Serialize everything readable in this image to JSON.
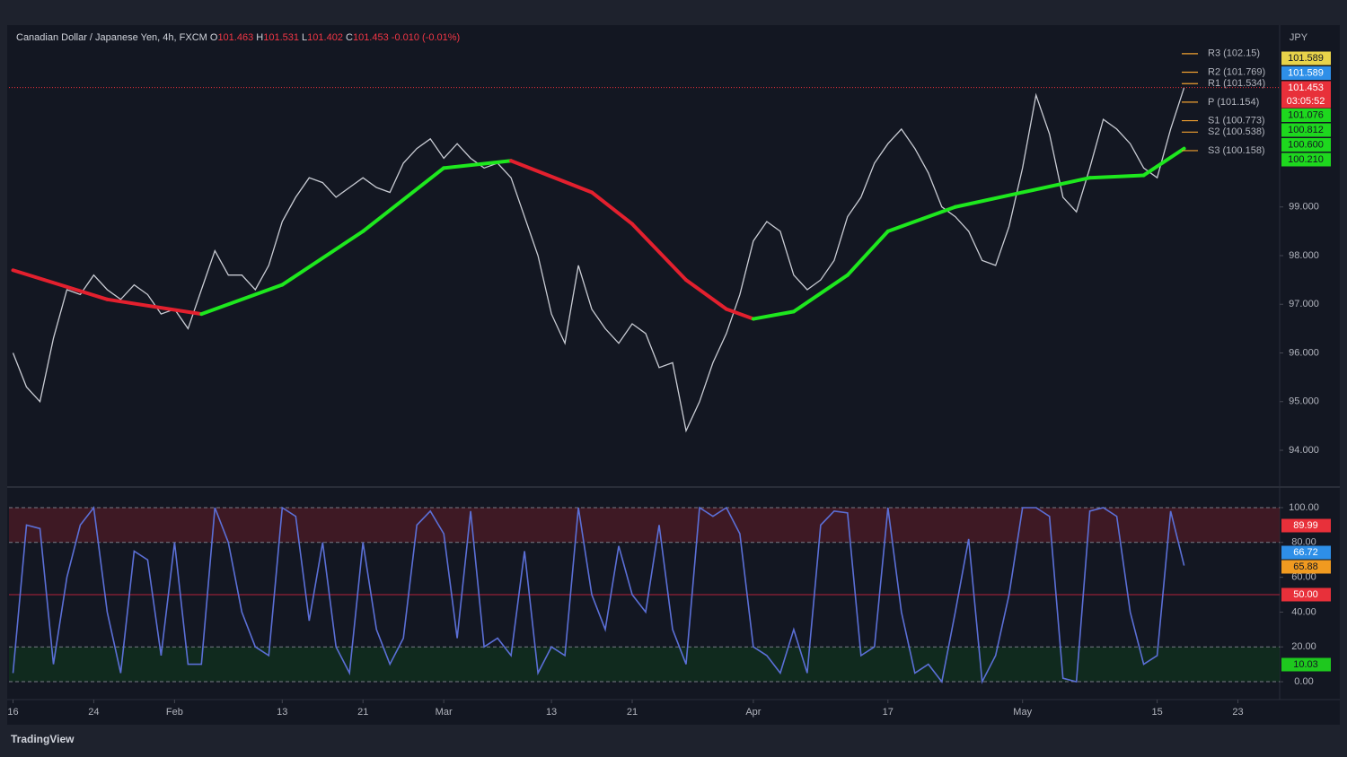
{
  "header": {
    "symbol": "Canadian Dollar / Japanese Yen, 4h, FXCM",
    "ohlc": [
      {
        "key": "O",
        "value": "101.463"
      },
      {
        "key": "H",
        "value": "101.531"
      },
      {
        "key": "L",
        "value": "101.402"
      },
      {
        "key": "C",
        "value": "101.453"
      }
    ],
    "change": "-0.010 (-0.01%)"
  },
  "brand": "TradingView",
  "chart_data": [
    {
      "type": "line",
      "currency": "JPY",
      "xlim": [
        -0.3,
        94.1
      ],
      "ylim": [
        93.3,
        102.7
      ],
      "yticks": [
        {
          "value": 94,
          "label": "94.000"
        },
        {
          "value": 95,
          "label": "95.000"
        },
        {
          "value": 96,
          "label": "96.000"
        },
        {
          "value": 97,
          "label": "97.000"
        },
        {
          "value": 98,
          "label": "98.000"
        },
        {
          "value": 99,
          "label": "99.000"
        }
      ],
      "x": [
        0,
        1,
        2,
        3,
        4,
        5,
        6,
        7,
        8,
        9,
        10,
        11,
        12,
        13,
        14,
        15,
        16,
        17,
        18,
        19,
        20,
        21,
        22,
        23,
        24,
        25,
        26,
        27,
        28,
        29,
        30,
        31,
        32,
        33,
        34,
        35,
        36,
        37,
        38,
        39,
        40,
        41,
        42,
        43,
        44,
        45,
        46,
        47,
        48,
        49,
        50,
        51,
        52,
        53,
        54,
        55,
        56,
        57,
        58,
        59,
        60,
        61,
        62,
        63,
        64,
        65,
        66,
        67,
        68,
        69,
        70,
        71,
        72,
        73,
        74,
        75,
        76,
        77,
        78,
        79,
        80,
        81,
        82,
        83,
        84,
        85,
        86,
        87
      ],
      "series": [
        {
          "color": "#c9ccd4",
          "width": 1.3,
          "values": [
            96.0,
            95.3,
            95.0,
            96.3,
            97.3,
            97.2,
            97.6,
            97.3,
            97.1,
            97.4,
            97.2,
            96.8,
            96.9,
            96.5,
            97.3,
            98.1,
            97.6,
            97.6,
            97.3,
            97.8,
            98.7,
            99.2,
            99.6,
            99.5,
            99.2,
            99.4,
            99.6,
            99.4,
            99.3,
            99.9,
            100.2,
            100.4,
            100.0,
            100.3,
            100.0,
            99.8,
            99.9,
            99.6,
            98.8,
            98.0,
            96.8,
            96.2,
            97.8,
            96.9,
            96.5,
            96.2,
            96.6,
            96.4,
            95.7,
            95.8,
            94.4,
            95.0,
            95.8,
            96.4,
            97.2,
            98.3,
            98.7,
            98.5,
            97.6,
            97.3,
            97.5,
            97.9,
            98.8,
            99.2,
            99.9,
            100.3,
            100.6,
            100.2,
            99.7,
            99.0,
            98.8,
            98.5,
            97.9,
            97.8,
            98.6,
            99.8,
            101.3,
            100.5,
            99.2,
            98.9,
            99.8,
            100.8,
            100.6,
            100.3,
            99.8,
            99.6,
            100.6,
            101.453
          ]
        },
        {
          "up_color": "#1ee81e",
          "down_color": "#e3202e",
          "width": 4,
          "x": [
            0,
            7,
            14,
            20,
            26,
            32,
            37,
            43,
            46,
            50,
            53,
            55,
            58,
            62,
            65,
            70,
            75,
            80,
            84,
            87
          ],
          "values": [
            97.7,
            97.1,
            96.8,
            97.4,
            98.5,
            99.8,
            99.95,
            99.3,
            98.65,
            97.5,
            96.9,
            96.7,
            96.85,
            97.6,
            98.5,
            99.0,
            99.3,
            99.6,
            99.65,
            100.2
          ]
        }
      ],
      "pivots": [
        {
          "value": 102.15,
          "label": "R3 (102.15)"
        },
        {
          "value": 101.769,
          "label": "R2 (101.769)"
        },
        {
          "value": 101.534,
          "label": "R1 (101.534)"
        },
        {
          "value": 101.154,
          "label": "P (101.154)"
        },
        {
          "value": 100.773,
          "label": "S1 (100.773)"
        },
        {
          "value": 100.538,
          "label": "S2 (100.538)"
        },
        {
          "value": 100.158,
          "label": "S3 (100.158)"
        }
      ],
      "pivot_color": "#f0a030",
      "price_tags": [
        {
          "value": 101.589,
          "color": "#e8d34a"
        },
        {
          "value": 101.589,
          "color": "#2e8fe8"
        },
        {
          "value": 101.453,
          "color": "#e8303a",
          "countdown": "03:05:52",
          "last_line": true
        },
        {
          "value": 101.076,
          "color": "#1ed81e"
        },
        {
          "value": 100.812,
          "color": "#1ed81e"
        },
        {
          "value": 100.6,
          "label": "100.600",
          "color": "#1ed81e"
        },
        {
          "value": 100.21,
          "label": "100.210",
          "color": "#1ed81e"
        }
      ]
    },
    {
      "type": "line",
      "xlim": [
        -0.3,
        94.1
      ],
      "ylim": [
        -7.7,
        110.8
      ],
      "xticks": [
        {
          "value": 0,
          "label": "16"
        },
        {
          "value": 6,
          "label": "24"
        },
        {
          "value": 12,
          "label": "Feb"
        },
        {
          "value": 20,
          "label": "13"
        },
        {
          "value": 26,
          "label": "21"
        },
        {
          "value": 32,
          "label": "Mar"
        },
        {
          "value": 40,
          "label": "13"
        },
        {
          "value": 46,
          "label": "21"
        },
        {
          "value": 55,
          "label": "Apr"
        },
        {
          "value": 65,
          "label": "17"
        },
        {
          "value": 75,
          "label": "May"
        },
        {
          "value": 85,
          "label": "15"
        },
        {
          "value": 91,
          "label": "23"
        }
      ],
      "yticks": [
        {
          "value": 0,
          "label": "0.00"
        },
        {
          "value": 20,
          "label": "20.00"
        },
        {
          "value": 40,
          "label": "40.00"
        },
        {
          "value": 60,
          "label": "60.00"
        },
        {
          "value": 80,
          "label": "80.00"
        },
        {
          "value": 100,
          "label": "100.00"
        }
      ],
      "bands": [
        {
          "from": 80,
          "to": 100,
          "color": "#4a1a26"
        },
        {
          "from": 0,
          "to": 20,
          "color": "#10301e"
        }
      ],
      "hline": {
        "value": 50,
        "color": "#b3203a"
      },
      "x": [
        0,
        1,
        2,
        3,
        4,
        5,
        6,
        7,
        8,
        9,
        10,
        11,
        12,
        13,
        14,
        15,
        16,
        17,
        18,
        19,
        20,
        21,
        22,
        23,
        24,
        25,
        26,
        27,
        28,
        29,
        30,
        31,
        32,
        33,
        34,
        35,
        36,
        37,
        38,
        39,
        40,
        41,
        42,
        43,
        44,
        45,
        46,
        47,
        48,
        49,
        50,
        51,
        52,
        53,
        54,
        55,
        56,
        57,
        58,
        59,
        60,
        61,
        62,
        63,
        64,
        65,
        66,
        67,
        68,
        69,
        70,
        71,
        72,
        73,
        74,
        75,
        76,
        77,
        78,
        79,
        80,
        81,
        82,
        83,
        84,
        85,
        86,
        87
      ],
      "series": [
        {
          "color": "#5b6fd6",
          "width": 1.6,
          "values": [
            5,
            90,
            88,
            10,
            60,
            90,
            100,
            40,
            5,
            75,
            70,
            15,
            80,
            10,
            10,
            100,
            80,
            40,
            20,
            15,
            100,
            95,
            35,
            80,
            20,
            5,
            80,
            30,
            10,
            25,
            90,
            98,
            85,
            25,
            98,
            20,
            25,
            15,
            75,
            5,
            20,
            15,
            100,
            50,
            30,
            78,
            50,
            40,
            90,
            30,
            10,
            100,
            95,
            100,
            85,
            20,
            15,
            5,
            30,
            5,
            90,
            98,
            97,
            15,
            20,
            100,
            40,
            5,
            10,
            0,
            40,
            82,
            0,
            15,
            50,
            100,
            100,
            95,
            2,
            0,
            98,
            100,
            95,
            40,
            10,
            15,
            98,
            66.72
          ]
        }
      ],
      "price_tags": [
        {
          "value": 89.99,
          "color": "#e8303a"
        },
        {
          "value": 66.72,
          "color": "#2e8fe8"
        },
        {
          "value": 65.88,
          "color": "#f09a20"
        },
        {
          "value": 50,
          "label": "50.00",
          "color": "#e8303a"
        },
        {
          "value": 10.03,
          "color": "#1ec81e"
        }
      ]
    }
  ]
}
